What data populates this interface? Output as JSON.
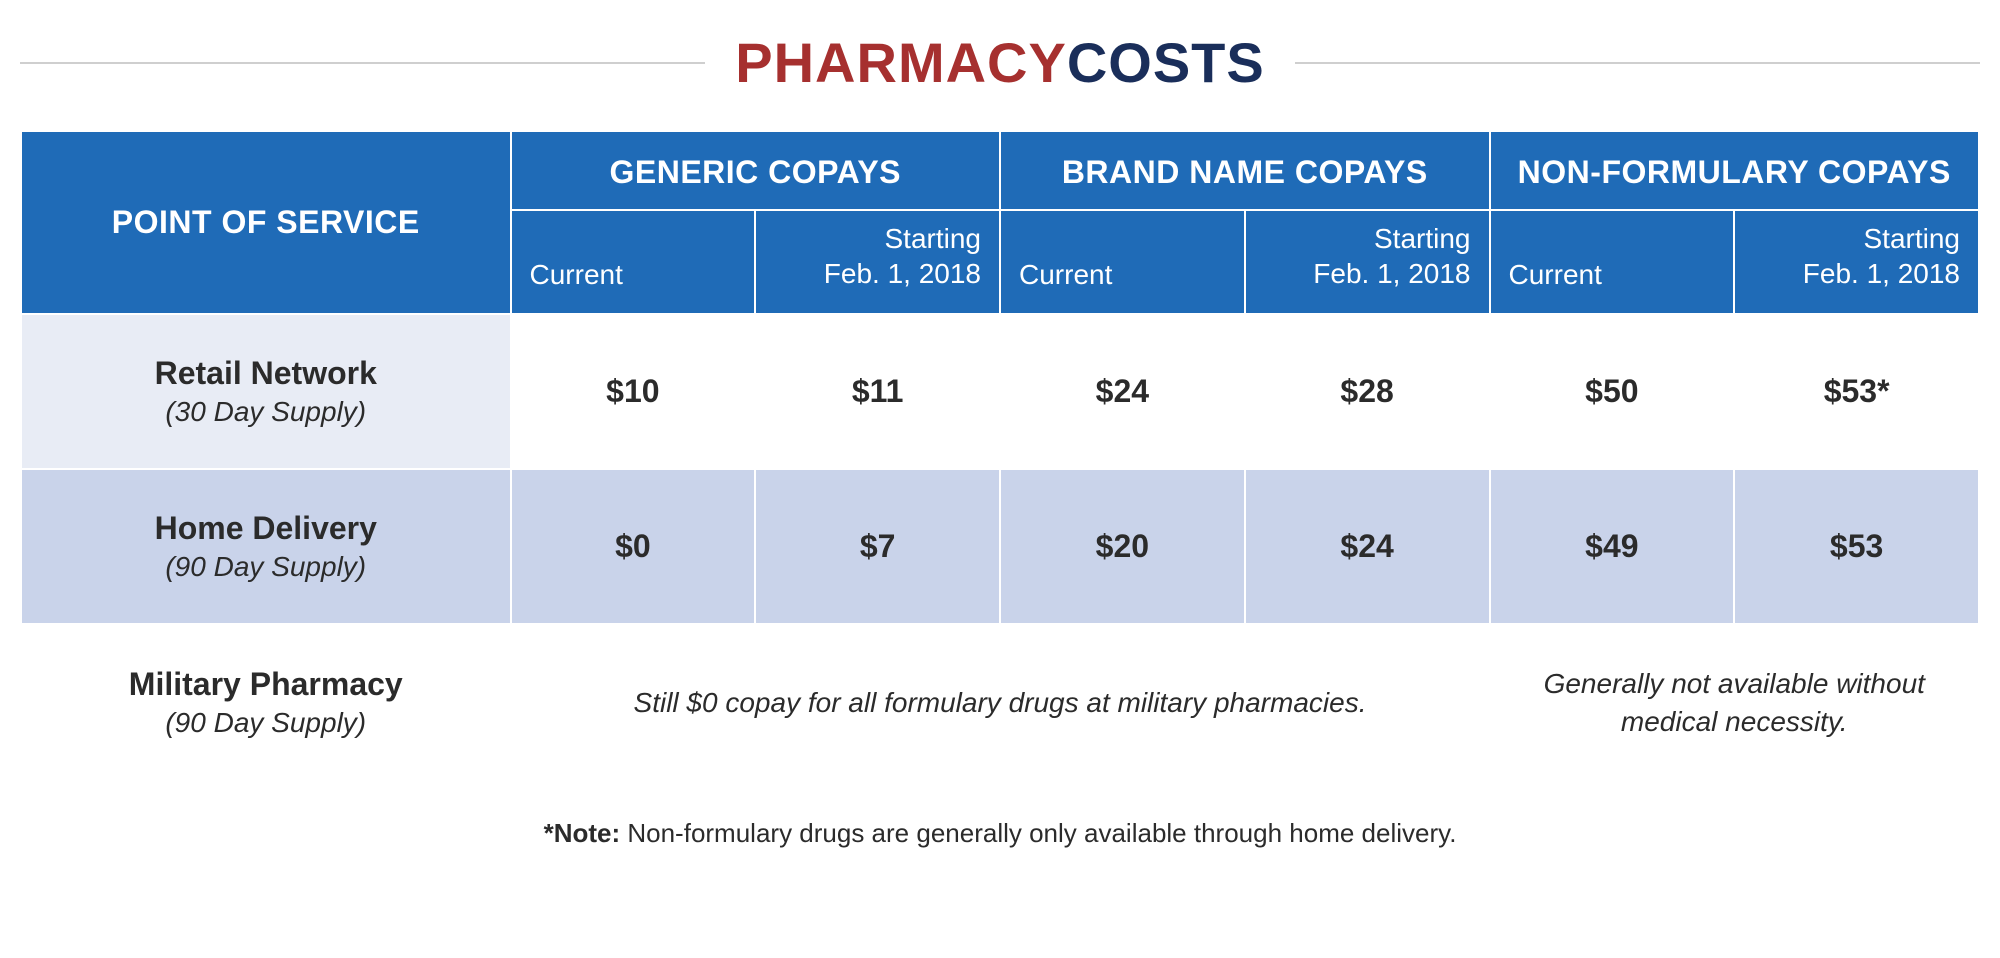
{
  "title": {
    "part1": "PHARMACY",
    "part2": "COSTS"
  },
  "colors": {
    "header_bg": "#1f6bb7",
    "header_text": "#ffffff",
    "rule": "#cfcfcf",
    "title_red": "#a6302f",
    "title_navy": "#1a2e5a",
    "row_alt_light": "#e8ecf5",
    "row_alt_mid": "#c9d3ea",
    "text": "#2b2b2b"
  },
  "headers": {
    "pos": "POINT OF SERVICE",
    "groups": [
      "GENERIC COPAYS",
      "BRAND NAME COPAYS",
      "NON-FORMULARY COPAYS"
    ],
    "sub_current": "Current",
    "sub_starting_l1": "Starting",
    "sub_starting_l2": "Feb. 1, 2018"
  },
  "rows": [
    {
      "name": "Retail Network",
      "sub": "(30 Day Supply)",
      "generic_current": "$10",
      "generic_new": "$11",
      "brand_current": "$24",
      "brand_new": "$28",
      "nonform_current": "$50",
      "nonform_new": "$53*"
    },
    {
      "name": "Home Delivery",
      "sub": "(90 Day Supply)",
      "generic_current": "$0",
      "generic_new": "$7",
      "brand_current": "$20",
      "brand_new": "$24",
      "nonform_current": "$49",
      "nonform_new": "$53"
    },
    {
      "name": "Military Pharmacy",
      "sub": "(90 Day Supply)",
      "span_note_1": "Still $0 copay for all formulary drugs at military pharmacies.",
      "span_note_2": "Generally not available without medical necessity."
    }
  ],
  "footnote": {
    "label": "*Note:",
    "text": " Non-formulary drugs are generally only available through home delivery."
  }
}
